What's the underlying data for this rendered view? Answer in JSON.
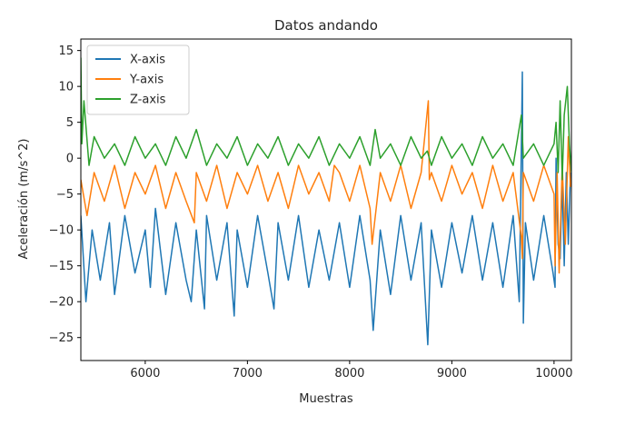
{
  "chart_data": {
    "type": "line",
    "title": "Datos andando",
    "xlabel": "Muestras",
    "ylabel": "Aceleración (m/s^2)",
    "xlim": [
      5370,
      10170
    ],
    "ylim": [
      -28.2,
      16.6
    ],
    "x_ticks": [
      6000,
      7000,
      8000,
      9000,
      10000
    ],
    "y_ticks": [
      15,
      10,
      5,
      0,
      -5,
      -10,
      -15,
      -20,
      -25
    ],
    "legend": {
      "position": "top-left"
    },
    "grid": false,
    "series": [
      {
        "name": "X-axis",
        "color": "#1f77b4",
        "x": [
          5370,
          5420,
          5480,
          5560,
          5650,
          5700,
          5800,
          5900,
          6000,
          6050,
          6100,
          6200,
          6300,
          6400,
          6450,
          6500,
          6580,
          6600,
          6700,
          6800,
          6870,
          6900,
          7000,
          7100,
          7200,
          7260,
          7300,
          7400,
          7500,
          7600,
          7700,
          7800,
          7900,
          8000,
          8100,
          8200,
          8230,
          8300,
          8400,
          8500,
          8600,
          8700,
          8765,
          8800,
          8900,
          9000,
          9100,
          9200,
          9300,
          9400,
          9500,
          9600,
          9660,
          9690,
          9700,
          9720,
          9800,
          9900,
          9990,
          10010,
          10020,
          10040,
          10060,
          10080,
          10100,
          10120,
          10140,
          10160
        ],
        "y": [
          -8,
          -20,
          -10,
          -17,
          -9,
          -19,
          -8,
          -16,
          -10,
          -18,
          -7,
          -19,
          -9,
          -17,
          -20,
          -10,
          -21,
          -8,
          -17,
          -9,
          -22,
          -10,
          -18,
          -8,
          -16,
          -21,
          -9,
          -17,
          -8,
          -18,
          -10,
          -17,
          -9,
          -18,
          -8,
          -17,
          -24,
          -10,
          -19,
          -8,
          -17,
          -9,
          -26,
          -10,
          -18,
          -9,
          -16,
          -8,
          -17,
          -9,
          -18,
          -8,
          -20,
          12,
          -23,
          -9,
          -17,
          -8,
          -16,
          -18,
          0,
          -12,
          -14,
          -3,
          -15,
          -2,
          -12,
          -2
        ]
      },
      {
        "name": "Y-axis",
        "color": "#ff7f0e",
        "x": [
          5370,
          5430,
          5500,
          5600,
          5700,
          5800,
          5900,
          6000,
          6100,
          6200,
          6300,
          6400,
          6480,
          6500,
          6600,
          6700,
          6800,
          6900,
          7000,
          7100,
          7200,
          7300,
          7400,
          7500,
          7600,
          7700,
          7800,
          7850,
          7900,
          8000,
          8100,
          8200,
          8220,
          8300,
          8400,
          8500,
          8600,
          8700,
          8770,
          8780,
          8800,
          8900,
          9000,
          9100,
          9200,
          9300,
          9400,
          9500,
          9600,
          9680,
          9690,
          9700,
          9800,
          9900,
          10000,
          10010,
          10030,
          10050,
          10080,
          10110,
          10140,
          10160
        ],
        "y": [
          -3,
          -8,
          -2,
          -6,
          -1,
          -7,
          -2,
          -5,
          -1,
          -7,
          -2,
          -6,
          -9,
          -2,
          -6,
          -1,
          -7,
          -2,
          -5,
          -1,
          -6,
          -2,
          -7,
          -1,
          -5,
          -2,
          -6,
          -1,
          -2,
          -6,
          -1,
          -7,
          -12,
          -2,
          -6,
          -1,
          -7,
          -2,
          8,
          -3,
          -2,
          -6,
          -1,
          -5,
          -2,
          -7,
          -1,
          -6,
          -2,
          -11,
          -14,
          -2,
          -6,
          -1,
          -5,
          -15,
          -2,
          -16,
          -1,
          -12,
          3,
          -4
        ]
      },
      {
        "name": "Z-axis",
        "color": "#2ca02c",
        "x": [
          5370,
          5380,
          5400,
          5450,
          5500,
          5600,
          5700,
          5800,
          5900,
          6000,
          6100,
          6200,
          6300,
          6400,
          6500,
          6600,
          6700,
          6800,
          6900,
          7000,
          7100,
          7200,
          7300,
          7400,
          7500,
          7600,
          7700,
          7800,
          7900,
          8000,
          8100,
          8200,
          8250,
          8300,
          8400,
          8500,
          8600,
          8700,
          8760,
          8800,
          8900,
          9000,
          9100,
          9200,
          9300,
          9400,
          9500,
          9600,
          9680,
          9700,
          9800,
          9900,
          10000,
          10020,
          10040,
          10060,
          10080,
          10100,
          10130,
          10150,
          10170
        ],
        "y": [
          14,
          2,
          8,
          -1,
          3,
          0,
          2,
          -1,
          3,
          0,
          2,
          -1,
          3,
          0,
          4,
          -1,
          2,
          0,
          3,
          -1,
          2,
          0,
          3,
          -1,
          2,
          0,
          3,
          -1,
          2,
          0,
          3,
          -1,
          4,
          0,
          2,
          -1,
          3,
          0,
          1,
          -1,
          3,
          0,
          2,
          -1,
          3,
          0,
          2,
          -1,
          6,
          0,
          2,
          -1,
          2,
          5,
          -2,
          8,
          -3,
          6,
          10,
          2,
          -2
        ]
      }
    ]
  }
}
